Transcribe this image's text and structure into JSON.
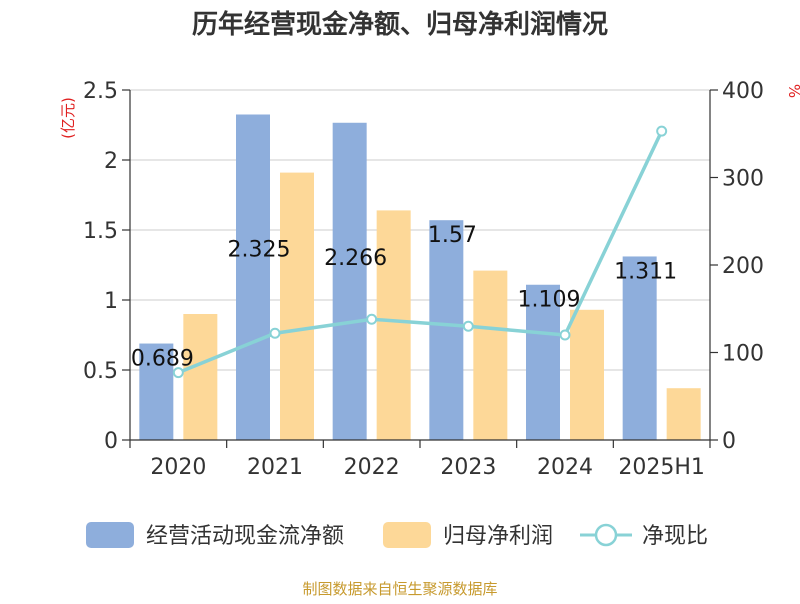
{
  "chart_data": {
    "type": "bar",
    "title": "历年经营现金净额、归母净利润情况",
    "y_left_unit": "(亿元)",
    "y_right_unit": "%",
    "categories": [
      "2020",
      "2021",
      "2022",
      "2023",
      "2024",
      "2025H1"
    ],
    "y_left_ticks": [
      "0",
      "0.5",
      "1",
      "1.5",
      "2",
      "2.5"
    ],
    "y_right_ticks": [
      "0",
      "100",
      "200",
      "300",
      "400"
    ],
    "ylim_left": [
      0,
      2.5
    ],
    "ylim_right": [
      0,
      400
    ],
    "series": [
      {
        "name": "经营活动现金流净额",
        "kind": "bar",
        "axis": "left",
        "color": "#8eaedc",
        "values": [
          0.689,
          2.325,
          2.266,
          1.57,
          1.109,
          1.311
        ],
        "labels": [
          "0.689",
          "2.325",
          "2.266",
          "1.57",
          "1.109",
          "1.311"
        ]
      },
      {
        "name": "归母净利润",
        "kind": "bar",
        "axis": "left",
        "color": "#fdd898",
        "values": [
          0.9,
          1.91,
          1.64,
          1.21,
          0.93,
          0.37
        ]
      },
      {
        "name": "净现比",
        "kind": "line",
        "axis": "right",
        "color": "#88d2d6",
        "values": [
          77,
          122,
          138,
          130,
          120,
          353
        ]
      }
    ],
    "grid": true,
    "legend_position": "bottom",
    "source": "制图数据来自恒生聚源数据库"
  }
}
